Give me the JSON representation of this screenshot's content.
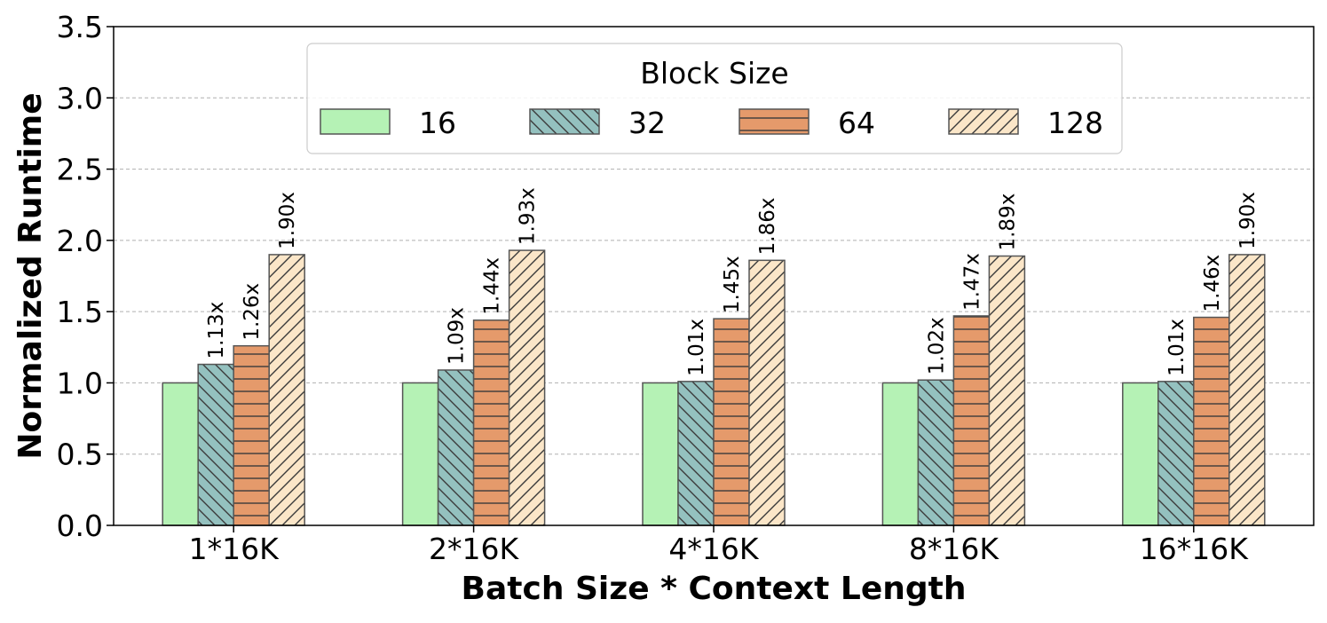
{
  "chart_data": {
    "type": "bar",
    "xlabel": "Batch Size * Context Length",
    "ylabel": "Normalized Runtime",
    "ylim": [
      0,
      3.5
    ],
    "yticks": [
      "0.0",
      "0.5",
      "1.0",
      "1.5",
      "2.0",
      "2.5",
      "3.0",
      "3.5"
    ],
    "grid": "horizontal dashed",
    "categories": [
      "1*16K",
      "2*16K",
      "4*16K",
      "8*16K",
      "16*16K"
    ],
    "legend": {
      "title": "Block Size",
      "placement": "top-center"
    },
    "series": [
      {
        "name": "16",
        "values": [
          1.0,
          1.0,
          1.0,
          1.0,
          1.0
        ],
        "labels": [
          "",
          "",
          "",
          "",
          ""
        ],
        "color": "#b5f2b5",
        "hatch": "none"
      },
      {
        "name": "32",
        "values": [
          1.13,
          1.09,
          1.01,
          1.02,
          1.01
        ],
        "labels": [
          "1.13x",
          "1.09x",
          "1.01x",
          "1.02x",
          "1.01x"
        ],
        "color": "#94c1bf",
        "hatch": "backslash"
      },
      {
        "name": "64",
        "values": [
          1.26,
          1.44,
          1.45,
          1.47,
          1.46
        ],
        "labels": [
          "1.26x",
          "1.44x",
          "1.45x",
          "1.47x",
          "1.46x"
        ],
        "color": "#e59a6b",
        "hatch": "horizontal"
      },
      {
        "name": "128",
        "values": [
          1.9,
          1.93,
          1.86,
          1.89,
          1.9
        ],
        "labels": [
          "1.90x",
          "1.93x",
          "1.86x",
          "1.89x",
          "1.90x"
        ],
        "color": "#fbe6c8",
        "hatch": "slash"
      }
    ]
  }
}
